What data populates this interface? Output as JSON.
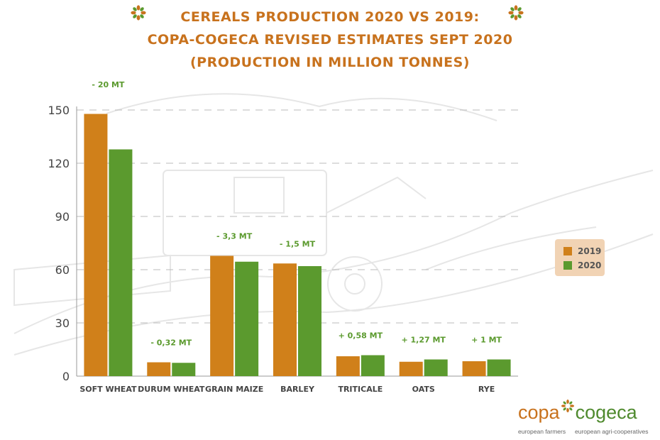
{
  "title": {
    "line1": "Cereals production 2020 vs 2019:",
    "line2": "Copa-Cogeca revised estimates Sept 2020",
    "line3": "(Production in million tonnes)"
  },
  "colors": {
    "accent": "#c8721d",
    "series_2019": "#d0801a",
    "series_2020": "#5b9a2e",
    "delta_text": "#5b9a2e",
    "grid": "#bbbbbb",
    "axis_text": "#444444"
  },
  "icons": {
    "left": "flower-icon",
    "right": "flower-icon",
    "logo": "asterisk-flower-icon"
  },
  "chart_data": {
    "type": "bar",
    "categories": [
      "SOFT WHEAT",
      "DURUM WHEAT",
      "GRAIN MAIZE",
      "BARLEY",
      "TRITICALE",
      "OATS",
      "RYE"
    ],
    "series": [
      {
        "name": "2019",
        "values": [
          147.8,
          7.8,
          67.8,
          63.5,
          11.2,
          8.1,
          8.4
        ]
      },
      {
        "name": "2020",
        "values": [
          127.8,
          7.5,
          64.5,
          62.0,
          11.8,
          9.4,
          9.4
        ]
      }
    ],
    "deltas": [
      "- 20 MT",
      "- 0,32 MT",
      "- 3,3 MT",
      "- 1,5 MT",
      "+ 0,58 MT",
      "+ 1,27 MT",
      "+ 1 MT"
    ],
    "yticks": [
      0,
      30,
      60,
      90,
      120,
      150
    ],
    "ylim": [
      0,
      150
    ],
    "grid": true,
    "legend_position": "right"
  },
  "legend": [
    {
      "label": "2019",
      "color": "#d0801a"
    },
    {
      "label": "2020",
      "color": "#5b9a2e"
    }
  ],
  "logo": {
    "copa": "copa",
    "cogeca": "cogeca",
    "sub_left": "european farmers",
    "sub_right": "european agri-cooperatives"
  }
}
